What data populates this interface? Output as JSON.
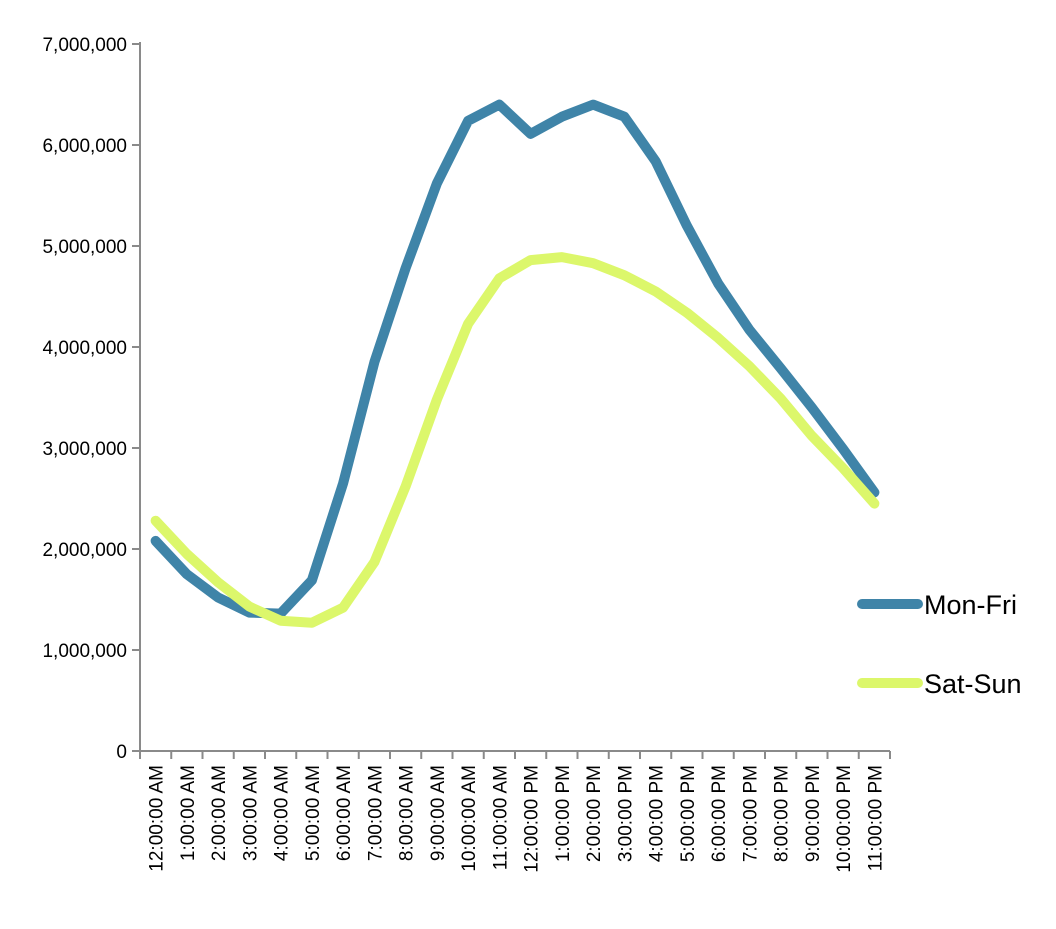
{
  "chart_data": {
    "type": "line",
    "title": "",
    "xlabel": "",
    "ylabel": "",
    "categories": [
      "12:00:00 AM",
      "1:00:00 AM",
      "2:00:00 AM",
      "3:00:00 AM",
      "4:00:00 AM",
      "5:00:00 AM",
      "6:00:00 AM",
      "7:00:00 AM",
      "8:00:00 AM",
      "9:00:00 AM",
      "10:00:00 AM",
      "11:00:00 AM",
      "12:00:00 PM",
      "1:00:00 PM",
      "2:00:00 PM",
      "3:00:00 PM",
      "4:00:00 PM",
      "5:00:00 PM",
      "6:00:00 PM",
      "7:00:00 PM",
      "8:00:00 PM",
      "9:00:00 PM",
      "10:00:00 PM",
      "11:00:00 PM"
    ],
    "ylim": [
      0,
      7000000
    ],
    "yticks": [
      0,
      1000000,
      2000000,
      3000000,
      4000000,
      5000000,
      6000000,
      7000000
    ],
    "ytick_labels": [
      "0",
      "1,000,000",
      "2,000,000",
      "3,000,000",
      "4,000,000",
      "5,000,000",
      "6,000,000",
      "7,000,000"
    ],
    "grid": false,
    "legend_position": "right",
    "series": [
      {
        "name": "Mon-Fri",
        "color": "#3f84a8",
        "values": [
          2080000,
          1750000,
          1520000,
          1370000,
          1360000,
          1690000,
          2650000,
          3850000,
          4780000,
          5620000,
          6240000,
          6400000,
          6110000,
          6280000,
          6400000,
          6280000,
          5840000,
          5200000,
          4630000,
          4170000,
          3790000,
          3400000,
          2990000,
          2560000
        ]
      },
      {
        "name": "Sat-Sun",
        "color": "#dcf76b",
        "values": [
          2280000,
          1950000,
          1670000,
          1430000,
          1290000,
          1270000,
          1420000,
          1870000,
          2620000,
          3480000,
          4230000,
          4680000,
          4860000,
          4890000,
          4830000,
          4710000,
          4550000,
          4340000,
          4090000,
          3810000,
          3490000,
          3120000,
          2800000,
          2450000
        ]
      }
    ]
  }
}
